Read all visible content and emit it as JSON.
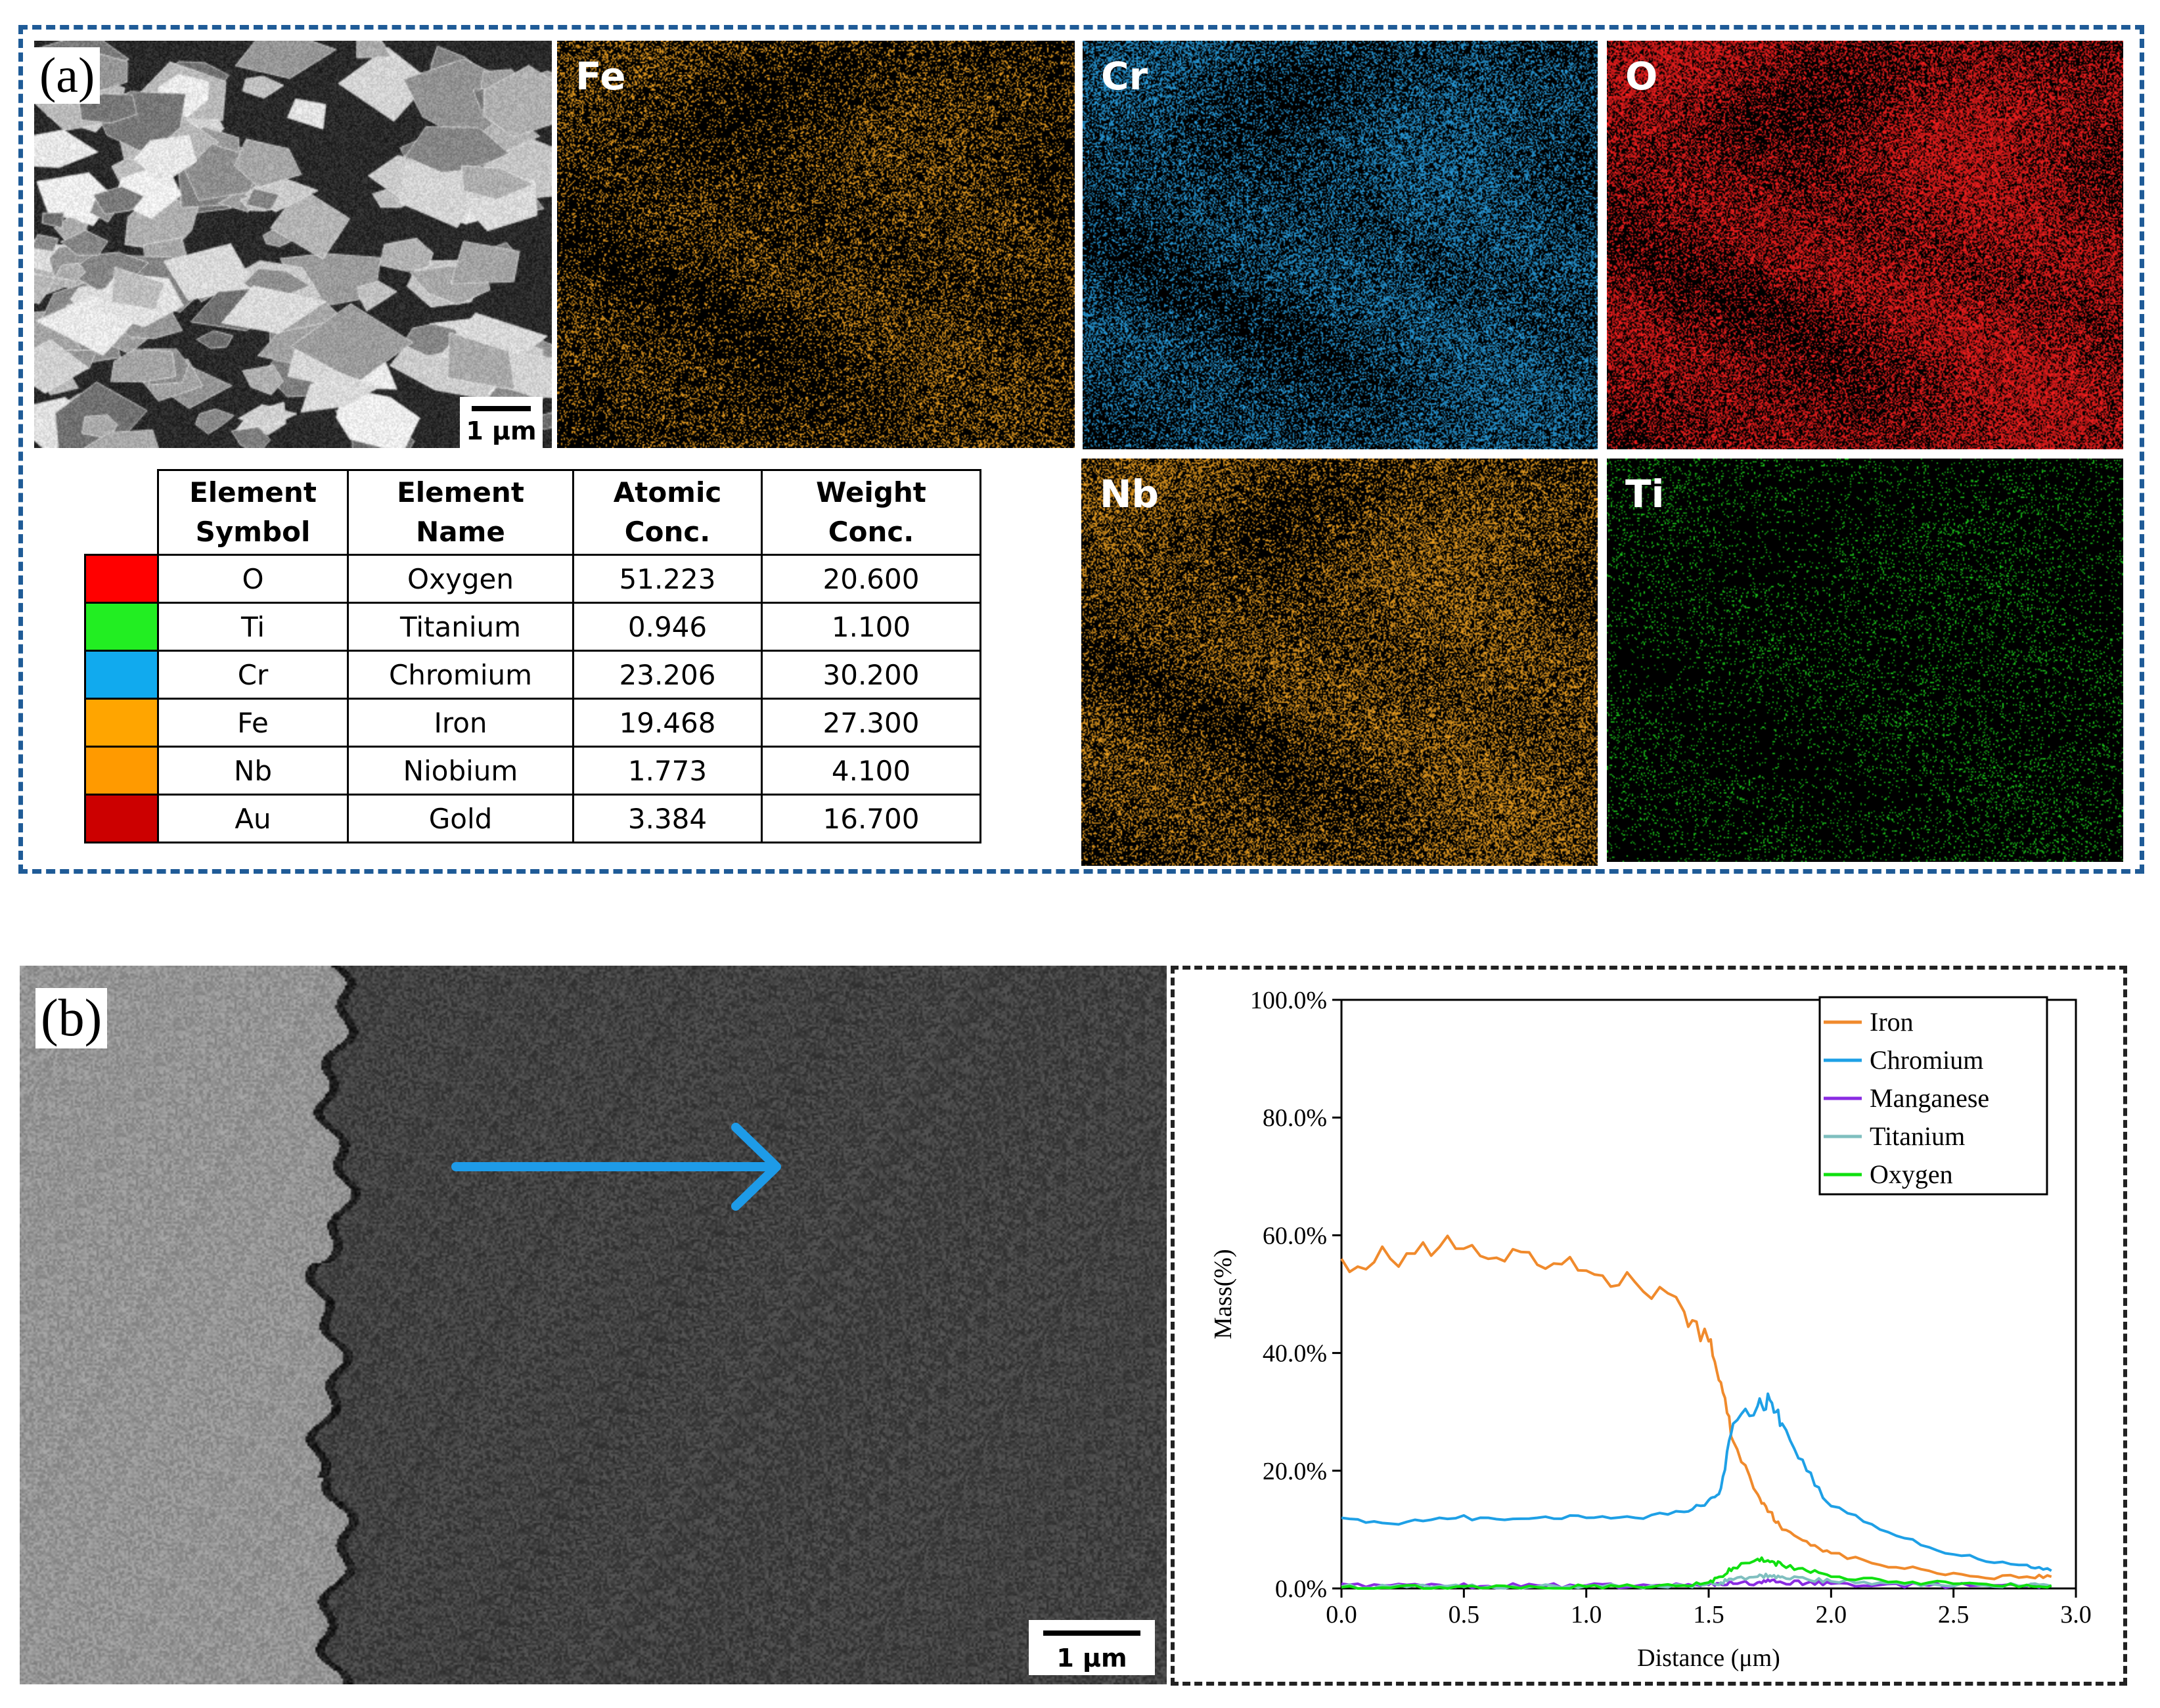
{
  "panel_a": {
    "letter": "(a)",
    "scale_bar": "1 μm",
    "maps": [
      {
        "symbol": "Fe",
        "color": "#f5a623"
      },
      {
        "symbol": "Cr",
        "color": "#2aa3e6"
      },
      {
        "symbol": "O",
        "color": "#ff2020"
      },
      {
        "symbol": "Nb",
        "color": "#f5a623"
      },
      {
        "symbol": "Ti",
        "color": "#1fe01f"
      }
    ],
    "table": {
      "headers": [
        "Element\nSymbol",
        "Element\nName",
        "Atomic\nConc.",
        "Weight\nConc."
      ],
      "rows": [
        {
          "swatch": "#ff0000",
          "symbol": "O",
          "name": "Oxygen",
          "atomic": "51.223",
          "weight": "20.600"
        },
        {
          "swatch": "#22ee22",
          "symbol": "Ti",
          "name": "Titanium",
          "atomic": "0.946",
          "weight": "1.100"
        },
        {
          "swatch": "#11aaee",
          "symbol": "Cr",
          "name": "Chromium",
          "atomic": "23.206",
          "weight": "30.200"
        },
        {
          "swatch": "#ffa500",
          "symbol": "Fe",
          "name": "Iron",
          "atomic": "19.468",
          "weight": "27.300"
        },
        {
          "swatch": "#ff9a00",
          "symbol": "Nb",
          "name": "Niobium",
          "atomic": "1.773",
          "weight": "4.100"
        },
        {
          "swatch": "#cc0000",
          "symbol": "Au",
          "name": "Gold",
          "atomic": "3.384",
          "weight": "16.700"
        }
      ]
    }
  },
  "panel_b": {
    "letter": "(b)",
    "scale_bar": "1 μm",
    "arrow_color": "#1e9be8"
  },
  "chart_data": {
    "type": "line",
    "title": "",
    "xlabel": "Distance (μm)",
    "ylabel": "Mass(%)",
    "xlim": [
      0.0,
      3.0
    ],
    "ylim": [
      0,
      100
    ],
    "xticks": [
      "0.0",
      "0.5",
      "1.0",
      "1.5",
      "2.0",
      "2.5",
      "3.0"
    ],
    "yticks": [
      "0.0%",
      "20.0%",
      "40.0%",
      "60.0%",
      "80.0%",
      "100.0%"
    ],
    "legend_position": "top-right",
    "grid": false,
    "x": [
      0.0,
      0.2,
      0.4,
      0.6,
      0.8,
      1.0,
      1.2,
      1.4,
      1.5,
      1.55,
      1.6,
      1.7,
      1.75,
      1.8,
      1.9,
      2.0,
      2.2,
      2.4,
      2.6,
      2.8,
      2.9
    ],
    "series": [
      {
        "name": "Iron",
        "color": "#f08a2c",
        "values": [
          56,
          56,
          58,
          56,
          55,
          54,
          52,
          47,
          42,
          35,
          25,
          16,
          13,
          10,
          8,
          6,
          4,
          3,
          2,
          2,
          2
        ]
      },
      {
        "name": "Chromium",
        "color": "#1ea0e6",
        "values": [
          12,
          11,
          12,
          12,
          12,
          12,
          12,
          13,
          15,
          17,
          28,
          31,
          32,
          28,
          20,
          14,
          10,
          7,
          5,
          4,
          3
        ]
      },
      {
        "name": "Manganese",
        "color": "#8a2be2",
        "values": [
          0.8,
          0.5,
          0.6,
          0.4,
          0.5,
          0.5,
          0.4,
          0.5,
          0.6,
          0.7,
          0.8,
          1.0,
          1.2,
          1.0,
          0.9,
          0.8,
          0.6,
          0.5,
          0.5,
          0.4,
          0.4
        ]
      },
      {
        "name": "Titanium",
        "color": "#7fbfbf",
        "values": [
          0.3,
          0.3,
          0.4,
          0.3,
          0.3,
          0.4,
          0.3,
          0.5,
          0.8,
          1.0,
          1.5,
          2.0,
          2.2,
          2.0,
          1.6,
          1.2,
          1.0,
          0.8,
          0.6,
          0.5,
          0.4
        ]
      },
      {
        "name": "Oxygen",
        "color": "#10e010",
        "values": [
          0.2,
          0.1,
          0.2,
          0.1,
          0.2,
          0.3,
          0.3,
          0.5,
          1.0,
          2.0,
          3.5,
          5.0,
          4.5,
          4.0,
          3.0,
          2.0,
          1.5,
          1.0,
          0.8,
          0.6,
          0.5
        ]
      }
    ]
  }
}
